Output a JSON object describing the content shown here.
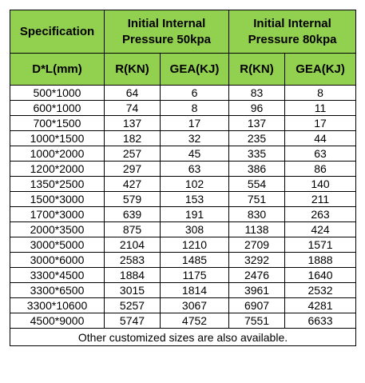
{
  "table": {
    "header": {
      "specification": "Specification",
      "group_50_line1": "Initial Internal",
      "group_50_line2": "Pressure 50kpa",
      "group_80_line1": "Initial Internal",
      "group_80_line2": "Pressure 80kpa"
    },
    "subheader": {
      "dl": "D*L(mm)",
      "r_50": "R(KN)",
      "gea_50": "GEA(KJ)",
      "r_80": "R(KN)",
      "gea_80": "GEA(KJ)"
    },
    "rows": [
      [
        "500*1000",
        "64",
        "6",
        "83",
        "8"
      ],
      [
        "600*1000",
        "74",
        "8",
        "96",
        "11"
      ],
      [
        "700*1500",
        "137",
        "17",
        "137",
        "17"
      ],
      [
        "1000*1500",
        "182",
        "32",
        "235",
        "44"
      ],
      [
        "1000*2000",
        "257",
        "45",
        "335",
        "63"
      ],
      [
        "1200*2000",
        "297",
        "63",
        "386",
        "86"
      ],
      [
        "1350*2500",
        "427",
        "102",
        "554",
        "140"
      ],
      [
        "1500*3000",
        "579",
        "153",
        "751",
        "211"
      ],
      [
        "1700*3000",
        "639",
        "191",
        "830",
        "263"
      ],
      [
        "2000*3500",
        "875",
        "308",
        "1138",
        "424"
      ],
      [
        "3000*5000",
        "2104",
        "1210",
        "2709",
        "1571"
      ],
      [
        "3000*6000",
        "2583",
        "1485",
        "3292",
        "1888"
      ],
      [
        "3300*4500",
        "1884",
        "1175",
        "2476",
        "1640"
      ],
      [
        "3300*6500",
        "3015",
        "1814",
        "3961",
        "2532"
      ],
      [
        "3300*10600",
        "5257",
        "3067",
        "6907",
        "4281"
      ],
      [
        "4500*9000",
        "5747",
        "4752",
        "7551",
        "6633"
      ]
    ],
    "footer": "Other customized sizes are also available.",
    "colors": {
      "header_background": "#92d050",
      "border": "#000000"
    }
  }
}
